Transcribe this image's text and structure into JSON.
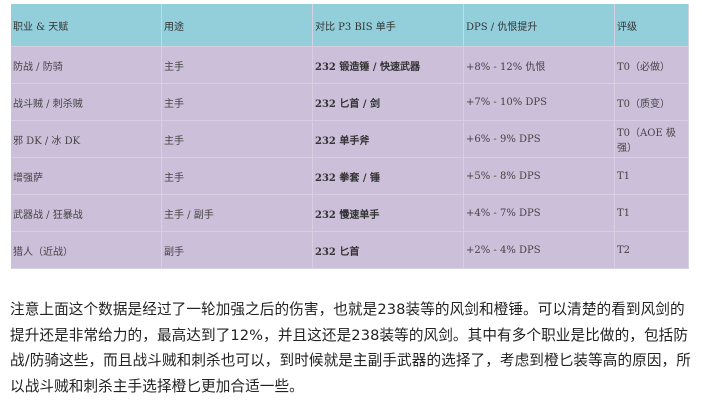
{
  "table": {
    "headers": [
      "职业 & 天赋",
      "用途",
      "对比 P3 BIS 单手",
      "DPS / 仇恨提升",
      "评级"
    ],
    "rows": [
      [
        "防战 / 防骑",
        "主手",
        "232 锻造锤 / 快速武器",
        "+8% - 12% 仇恨",
        "T0（必做）"
      ],
      [
        "战斗贼 / 刺杀贼",
        "主手",
        "232 匕首 / 剑",
        "+7% - 10% DPS",
        "T0（质变）"
      ],
      [
        "邪 DK / 冰 DK",
        "主手",
        "232 单手斧",
        "+6% - 9% DPS",
        "T0（AOE 极强）"
      ],
      [
        "增强萨",
        "主手",
        "232 拳套 / 锤",
        "+5% - 8% DPS",
        "T1"
      ],
      [
        "武器战 / 狂暴战",
        "主手 / 副手",
        "232 慢速单手",
        "+4% - 7% DPS",
        "T1"
      ],
      [
        "猎人（近战）",
        "副手",
        "232 匕首",
        "+2% - 4% DPS",
        "T2"
      ]
    ]
  },
  "colors": {
    "header": "#92cfdb",
    "body": "#cbbfd9"
  },
  "paragraph": "注意上面这个数据是经过了一轮加强之后的伤害，也就是238装等的风剑和橙锤。可以清楚的看到风剑的提升还是非常给力的，最高达到了12%，并且这还是238装等的风剑。其中有多个职业是比做的，包括防战/防骑这些，而且战斗贼和刺杀也可以，到时候就是主副手武器的选择了，考虑到橙匕装等高的原因，所以战斗贼和刺杀主手选择橙匕更加合适一些。"
}
